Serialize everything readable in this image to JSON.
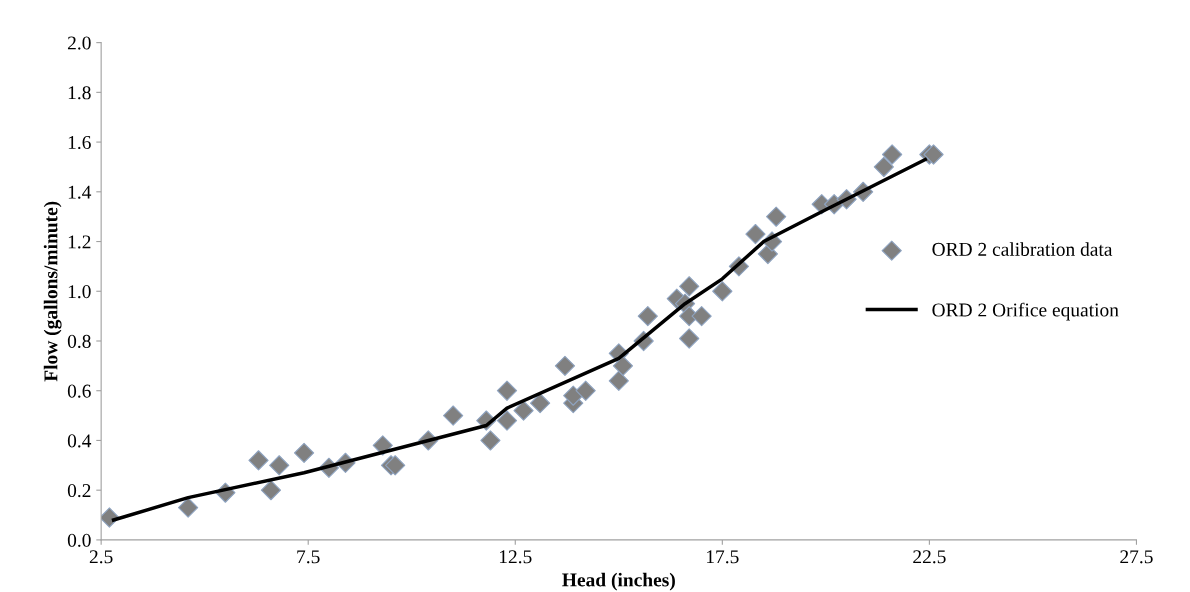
{
  "chart_data": {
    "type": "scatter",
    "xlabel": "Head (inches)",
    "ylabel": "Flow (gallons/minute)",
    "xlim": [
      2.5,
      27.5
    ],
    "xticks": [
      2.5,
      7.5,
      12.5,
      17.5,
      22.5,
      27.5
    ],
    "ylim": [
      0,
      2.0
    ],
    "yticks": [
      {
        "value": 0,
        "label": "0.0"
      },
      {
        "value": 0.2,
        "label": "0.2"
      },
      {
        "value": 0.4,
        "label": "0.4"
      },
      {
        "value": 0.6,
        "label": "0.6"
      },
      {
        "value": 0.8,
        "label": "0.8"
      },
      {
        "value": 1.0,
        "label": "1.0"
      },
      {
        "value": 1.2,
        "label": "1.2"
      },
      {
        "value": 1.4,
        "label": "1.4"
      },
      {
        "value": 1.6,
        "label": "1.6"
      },
      {
        "value": 1.8,
        "label": "1.8"
      },
      {
        "value": 2.0,
        "label": "2.0"
      }
    ],
    "grid": false,
    "legend": "right",
    "series": [
      {
        "name": "ORD 2 calibration data",
        "marker": "diamond",
        "color": "#808080",
        "x": [
          2.7,
          4.6,
          5.5,
          6.3,
          6.6,
          6.8,
          7.4,
          8.0,
          8.4,
          9.3,
          9.5,
          9.6,
          10.4,
          11.0,
          11.8,
          11.9,
          12.3,
          12.3,
          12.7,
          13.1,
          13.7,
          13.9,
          13.9,
          14.2,
          15.0,
          15.0,
          15.1,
          15.6,
          15.7,
          16.4,
          16.6,
          16.7,
          16.7,
          16.7,
          17.0,
          17.5,
          17.9,
          18.3,
          18.6,
          18.7,
          18.8,
          19.9,
          20.2,
          20.5,
          20.9,
          21.4,
          21.6,
          22.5,
          22.6
        ],
        "values": [
          0.09,
          0.13,
          0.19,
          0.32,
          0.2,
          0.3,
          0.35,
          0.29,
          0.31,
          0.38,
          0.3,
          0.3,
          0.4,
          0.5,
          0.48,
          0.4,
          0.6,
          0.48,
          0.52,
          0.55,
          0.7,
          0.55,
          0.58,
          0.6,
          0.75,
          0.64,
          0.7,
          0.8,
          0.9,
          0.97,
          0.95,
          1.02,
          0.9,
          0.81,
          0.9,
          1.0,
          1.1,
          1.23,
          1.15,
          1.2,
          1.3,
          1.35,
          1.35,
          1.37,
          1.4,
          1.5,
          1.55,
          1.55,
          1.55
        ]
      },
      {
        "name": "ORD 2 Orifice equation",
        "type": "line",
        "marker": "none",
        "line_style": "solid",
        "color": "#000000",
        "x": [
          2.8,
          4.6,
          7.4,
          11.8,
          12.3,
          15.0,
          16.6,
          17.5,
          18.5,
          19.9,
          22.4
        ],
        "values": [
          0.08,
          0.17,
          0.27,
          0.46,
          0.53,
          0.73,
          0.95,
          1.05,
          1.2,
          1.32,
          1.53
        ]
      }
    ]
  }
}
